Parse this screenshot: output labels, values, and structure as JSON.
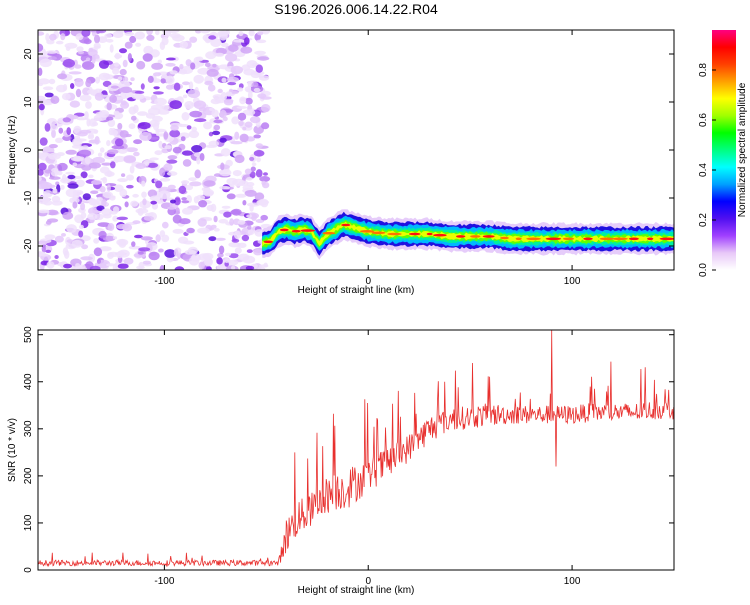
{
  "title": "S196.2026.006.14.22.R04",
  "chart_data": [
    {
      "type": "heatmap",
      "xlabel": "Height of straight line (km)",
      "ylabel": "Frequency (Hz)",
      "xlim": [
        -162,
        150
      ],
      "ylim": [
        -25,
        25
      ],
      "xticks": [
        {
          "v": -100,
          "label": "-100"
        },
        {
          "v": 0,
          "label": "0"
        },
        {
          "v": 100,
          "label": "100"
        }
      ],
      "yticks": [
        {
          "v": 20,
          "label": "20"
        },
        {
          "v": 10,
          "label": "10"
        },
        {
          "v": 0,
          "label": "0"
        },
        {
          "v": -10,
          "label": "-10"
        },
        {
          "v": -20,
          "label": "-20"
        }
      ],
      "noise_region_x": [
        -162,
        -52
      ],
      "signal_track": {
        "x": [
          -52,
          -48,
          -44,
          -40,
          -36,
          -32,
          -28,
          -24,
          -20,
          -16,
          -12,
          -8,
          -4,
          0,
          10,
          20,
          30,
          40,
          50,
          60,
          70,
          80,
          90,
          100,
          110,
          120,
          130,
          140,
          150
        ],
        "freq": [
          -19.5,
          -19,
          -17,
          -16.5,
          -17,
          -16.5,
          -17,
          -19.5,
          -17.5,
          -16.5,
          -15.5,
          -16,
          -16.5,
          -17,
          -17.5,
          -17.5,
          -17.5,
          -18,
          -18,
          -18,
          -18.5,
          -18.5,
          -18.5,
          -18.5,
          -18.5,
          -18.5,
          -18.5,
          -18.5,
          -18.5
        ]
      },
      "colorbar": {
        "label": "Normalized spectral amplitude",
        "range": [
          0,
          0.96
        ],
        "ticks": [
          {
            "v": 0.0,
            "label": "0.0"
          },
          {
            "v": 0.2,
            "label": "0.2"
          },
          {
            "v": 0.4,
            "label": "0.4"
          },
          {
            "v": 0.6,
            "label": "0.6"
          },
          {
            "v": 0.8,
            "label": "0.8"
          }
        ],
        "colors": [
          "#ffffff",
          "#e8c8f8",
          "#a040ff",
          "#5010f0",
          "#0000ff",
          "#00a0ff",
          "#00ffff",
          "#00ff80",
          "#00ff00",
          "#a0ff00",
          "#ffff00",
          "#ffa000",
          "#ff4000",
          "#ff0000",
          "#ff0080"
        ]
      }
    },
    {
      "type": "line",
      "color": "#e8302e",
      "xlabel": "Height of straight line (km)",
      "ylabel": "SNR (10 * v/v)",
      "xlim": [
        -162,
        150
      ],
      "ylim": [
        0,
        510
      ],
      "xticks": [
        {
          "v": -100,
          "label": "-100"
        },
        {
          "v": 0,
          "label": "0"
        },
        {
          "v": 100,
          "label": "100"
        }
      ],
      "yticks": [
        {
          "v": 0,
          "label": "0"
        },
        {
          "v": 100,
          "label": "100"
        },
        {
          "v": 200,
          "label": "200"
        },
        {
          "v": 300,
          "label": "300"
        },
        {
          "v": 400,
          "label": "400"
        },
        {
          "v": 500,
          "label": "500"
        }
      ],
      "envelope": {
        "x": [
          -162,
          -140,
          -120,
          -100,
          -80,
          -60,
          -44,
          -40,
          -35,
          -30,
          -20,
          -10,
          0,
          10,
          20,
          30,
          40,
          50,
          60,
          70,
          80,
          90,
          100,
          110,
          120,
          130,
          140,
          150
        ],
        "base": [
          15,
          15,
          15,
          15,
          15,
          15,
          15,
          75,
          110,
          120,
          160,
          175,
          200,
          230,
          260,
          300,
          320,
          325,
          330,
          330,
          330,
          330,
          330,
          335,
          335,
          335,
          340,
          340
        ],
        "noise": [
          6,
          6,
          6,
          6,
          6,
          6,
          6,
          40,
          40,
          35,
          40,
          45,
          35,
          35,
          30,
          30,
          25,
          25,
          25,
          20,
          20,
          20,
          20,
          20,
          20,
          20,
          20,
          20
        ]
      },
      "notable_points": [
        {
          "x": -36,
          "y": 250
        },
        {
          "x": 90,
          "y": 510
        },
        {
          "x": 92,
          "y": 220
        }
      ]
    }
  ]
}
